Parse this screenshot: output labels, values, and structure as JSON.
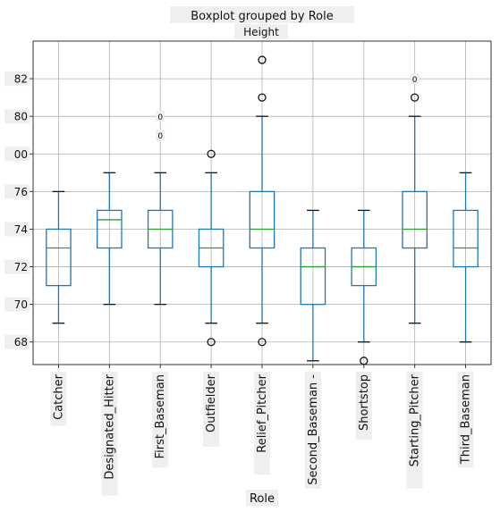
{
  "chart_data": {
    "type": "boxplot",
    "suptitle": "Boxplot grouped by Role",
    "title": "Height",
    "xlabel": "Role",
    "ylabel": "",
    "ylim": [
      66.8,
      84.0
    ],
    "yticks": [
      68,
      70,
      72,
      74,
      76,
      "00",
      80,
      82
    ],
    "grid": true,
    "colors": {
      "box": "#1f77b4",
      "median": "#2ca02c",
      "whisker": "#111111"
    },
    "categories": [
      "Catcher",
      "Designated_Hitter",
      "First_Baseman",
      "Outfielder",
      "Relief_Pitcher",
      "Second_Baseman -",
      "Shortstop",
      "Starting_Pitcher",
      "Third_Baseman"
    ],
    "boxes": [
      {
        "name": "Catcher",
        "whislo": 69,
        "q1": 71,
        "med": 73,
        "q3": 74,
        "whishi": 76,
        "fliers": []
      },
      {
        "name": "Designated_Hitter",
        "whislo": 70,
        "q1": 73,
        "med": 74.5,
        "q3": 75,
        "whishi": 77,
        "fliers": []
      },
      {
        "name": "First_Baseman",
        "whislo": 70,
        "q1": 73,
        "med": 74,
        "q3": 75,
        "whishi": 77,
        "fliers": []
      },
      {
        "name": "Outfielder",
        "whislo": 69,
        "q1": 72,
        "med": 73,
        "q3": 74,
        "whishi": 77,
        "fliers": [
          68,
          78
        ]
      },
      {
        "name": "Relief_Pitcher",
        "whislo": 69,
        "q1": 73,
        "med": 74,
        "q3": 76,
        "whishi": 80,
        "fliers": [
          68,
          81,
          83
        ]
      },
      {
        "name": "Second_Baseman -",
        "whislo": 67,
        "q1": 70,
        "med": 72,
        "q3": 73,
        "whishi": 75,
        "fliers": []
      },
      {
        "name": "Shortstop",
        "whislo": 68,
        "q1": 71,
        "med": 72,
        "q3": 73,
        "whishi": 75,
        "fliers": [
          67
        ]
      },
      {
        "name": "Starting_Pitcher",
        "whislo": 69,
        "q1": 73,
        "med": 74,
        "q3": 76,
        "whishi": 80,
        "fliers": [
          81
        ]
      },
      {
        "name": "Third_Baseman",
        "whislo": 68,
        "q1": 72,
        "med": 73,
        "q3": 75,
        "whishi": 77,
        "fliers": []
      }
    ],
    "annotations": [
      {
        "category": "First_Baseman",
        "text": "0",
        "y": 80
      },
      {
        "category": "First_Baseman",
        "text": "0",
        "y": 79
      },
      {
        "category": "Starting_Pitcher",
        "text": "0",
        "y": 82
      }
    ]
  }
}
